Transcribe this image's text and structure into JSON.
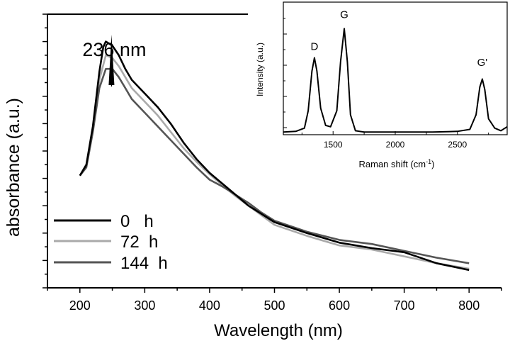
{
  "chart_data": [
    {
      "type": "line",
      "xlabel": "Wavelength (nm)",
      "ylabel": "absorbance (a.u.)",
      "xlim": [
        150,
        850
      ],
      "ylim": [
        0,
        1
      ],
      "x_ticks": [
        "200",
        "300",
        "400",
        "500",
        "600",
        "700",
        "800"
      ],
      "annotation": {
        "text": "236 nm",
        "x": 240,
        "y": 0.915
      },
      "legend_position": "bottom-left",
      "series": [
        {
          "name": "0   h",
          "color": "#000000",
          "points": [
            [
              200,
              0.41
            ],
            [
              210,
              0.45
            ],
            [
              220,
              0.59
            ],
            [
              230,
              0.79
            ],
            [
              236,
              0.88
            ],
            [
              240,
              0.9
            ],
            [
              250,
              0.885
            ],
            [
              260,
              0.85
            ],
            [
              270,
              0.8
            ],
            [
              280,
              0.76
            ],
            [
              300,
              0.71
            ],
            [
              320,
              0.66
            ],
            [
              340,
              0.6
            ],
            [
              360,
              0.53
            ],
            [
              380,
              0.47
            ],
            [
              400,
              0.42
            ],
            [
              420,
              0.38
            ],
            [
              440,
              0.34
            ],
            [
              460,
              0.3
            ],
            [
              480,
              0.27
            ],
            [
              500,
              0.24
            ],
            [
              550,
              0.2
            ],
            [
              600,
              0.165
            ],
            [
              650,
              0.145
            ],
            [
              700,
              0.13
            ],
            [
              750,
              0.09
            ],
            [
              800,
              0.065
            ]
          ]
        },
        {
          "name": "72  h",
          "color": "#aaaaaa",
          "points": [
            [
              200,
              0.41
            ],
            [
              210,
              0.45
            ],
            [
              220,
              0.58
            ],
            [
              230,
              0.76
            ],
            [
              240,
              0.85
            ],
            [
              250,
              0.84
            ],
            [
              260,
              0.81
            ],
            [
              270,
              0.77
            ],
            [
              280,
              0.73
            ],
            [
              300,
              0.68
            ],
            [
              320,
              0.63
            ],
            [
              340,
              0.57
            ],
            [
              360,
              0.51
            ],
            [
              380,
              0.46
            ],
            [
              400,
              0.415
            ],
            [
              420,
              0.375
            ],
            [
              440,
              0.335
            ],
            [
              460,
              0.3
            ],
            [
              480,
              0.265
            ],
            [
              500,
              0.23
            ],
            [
              550,
              0.19
            ],
            [
              600,
              0.155
            ],
            [
              650,
              0.14
            ],
            [
              700,
              0.115
            ],
            [
              750,
              0.09
            ],
            [
              800,
              0.07
            ]
          ]
        },
        {
          "name": "144  h",
          "color": "#555555",
          "points": [
            [
              200,
              0.41
            ],
            [
              210,
              0.44
            ],
            [
              220,
              0.57
            ],
            [
              230,
              0.73
            ],
            [
              240,
              0.8
            ],
            [
              250,
              0.8
            ],
            [
              260,
              0.77
            ],
            [
              270,
              0.73
            ],
            [
              280,
              0.69
            ],
            [
              300,
              0.64
            ],
            [
              320,
              0.59
            ],
            [
              340,
              0.54
            ],
            [
              360,
              0.49
            ],
            [
              380,
              0.44
            ],
            [
              400,
              0.395
            ],
            [
              420,
              0.37
            ],
            [
              440,
              0.34
            ],
            [
              460,
              0.31
            ],
            [
              480,
              0.275
            ],
            [
              500,
              0.245
            ],
            [
              550,
              0.205
            ],
            [
              600,
              0.175
            ],
            [
              650,
              0.16
            ],
            [
              700,
              0.135
            ],
            [
              750,
              0.11
            ],
            [
              800,
              0.09
            ]
          ]
        }
      ]
    },
    {
      "type": "line",
      "xlabel": "Raman shift (cm",
      "xlabel_sup": "-1",
      "xlabel_end": ")",
      "ylabel": "Intensity (a.u.)",
      "xlim": [
        1100,
        2900
      ],
      "ylim": [
        0,
        1
      ],
      "x_ticks": [
        "1500",
        "2000",
        "2500"
      ],
      "peak_labels": [
        {
          "text": "D",
          "x": 1350,
          "y": 0.64
        },
        {
          "text": "G",
          "x": 1590,
          "y": 0.88
        },
        {
          "text": "G'",
          "x": 2700,
          "y": 0.52
        }
      ],
      "series": [
        {
          "name": "",
          "color": "#000000",
          "points": [
            [
              1100,
              0.02
            ],
            [
              1200,
              0.025
            ],
            [
              1270,
              0.05
            ],
            [
              1300,
              0.18
            ],
            [
              1330,
              0.48
            ],
            [
              1350,
              0.58
            ],
            [
              1370,
              0.48
            ],
            [
              1400,
              0.2
            ],
            [
              1440,
              0.07
            ],
            [
              1480,
              0.06
            ],
            [
              1530,
              0.18
            ],
            [
              1560,
              0.55
            ],
            [
              1590,
              0.8
            ],
            [
              1615,
              0.55
            ],
            [
              1640,
              0.15
            ],
            [
              1680,
              0.03
            ],
            [
              1750,
              0.02
            ],
            [
              2000,
              0.02
            ],
            [
              2300,
              0.02
            ],
            [
              2500,
              0.025
            ],
            [
              2600,
              0.04
            ],
            [
              2650,
              0.15
            ],
            [
              2680,
              0.36
            ],
            [
              2700,
              0.42
            ],
            [
              2720,
              0.34
            ],
            [
              2750,
              0.12
            ],
            [
              2800,
              0.05
            ],
            [
              2850,
              0.03
            ],
            [
              2900,
              0.06
            ]
          ]
        }
      ]
    }
  ]
}
